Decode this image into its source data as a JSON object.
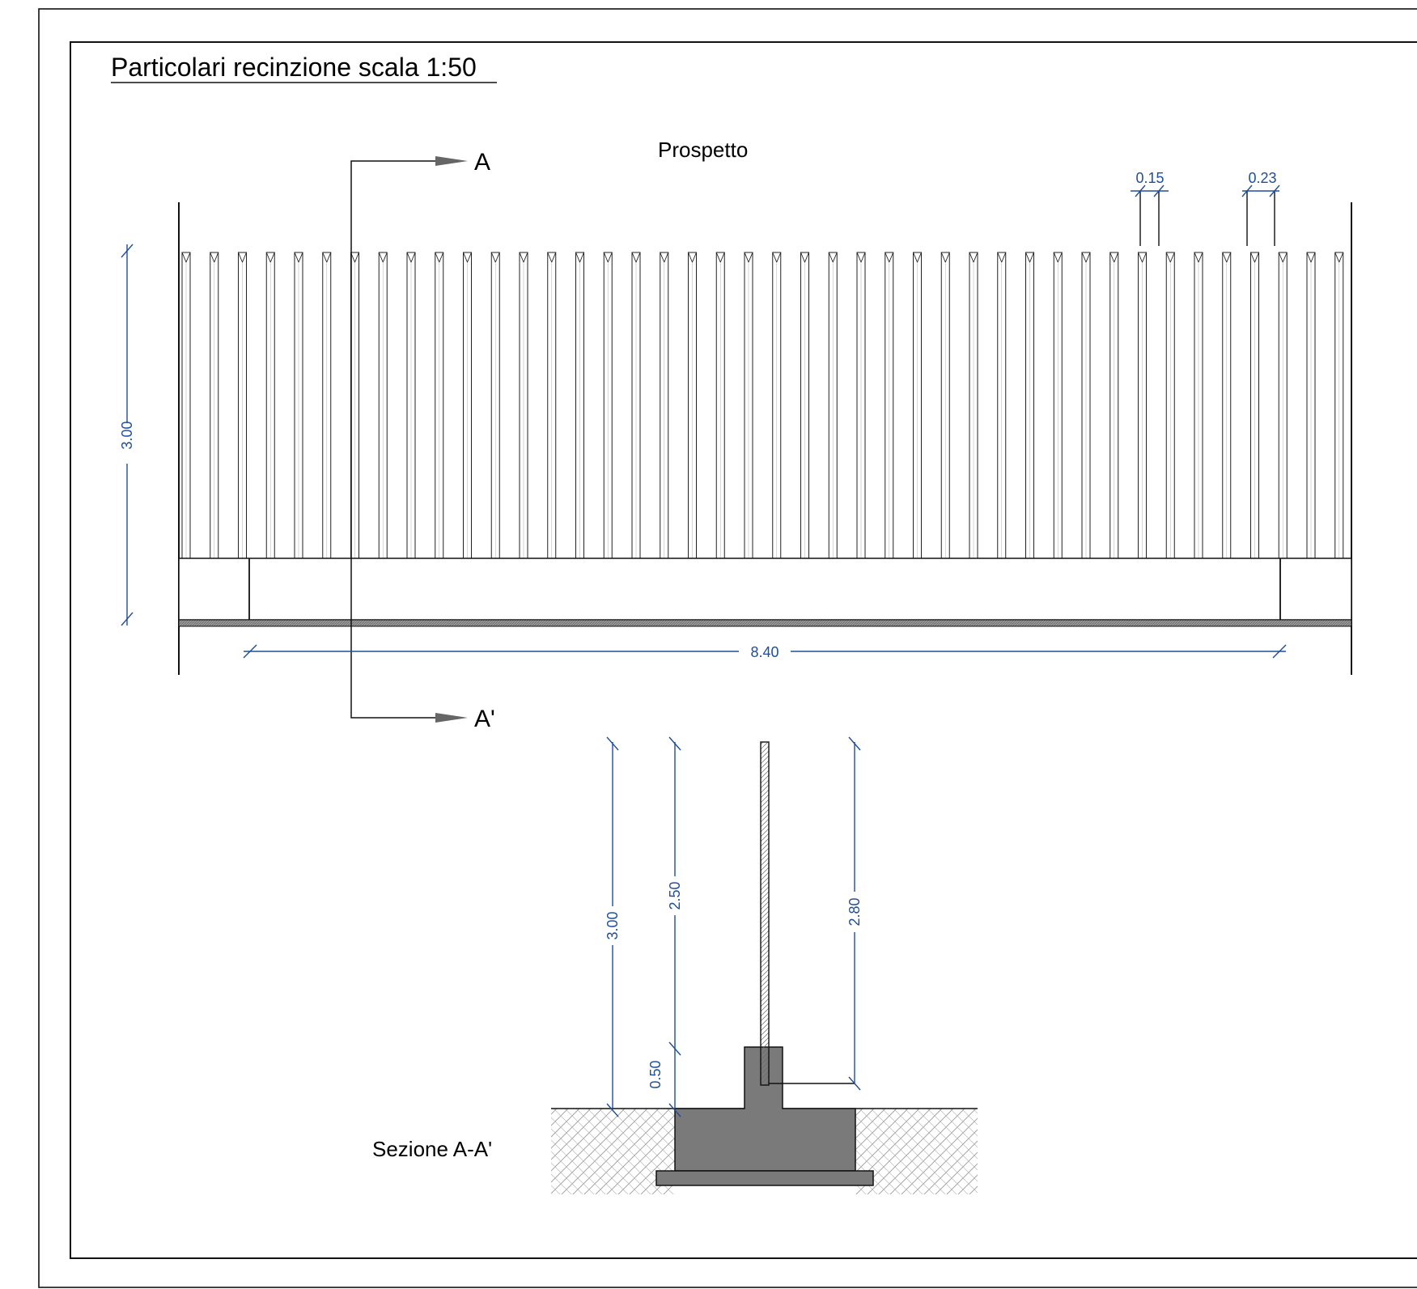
{
  "title": "Particolari recinzione scala 1:50",
  "elevation_label": "Prospetto",
  "section_label": "Sezione A-A'",
  "section_marks": {
    "top": "A",
    "bottom": "A'"
  },
  "dimensions": {
    "slat_width": "0.15",
    "slat_pitch": "0.23",
    "elevation_height": "3.00",
    "elevation_length": "8.40",
    "section_total": "3.00",
    "section_above_wall": "2.50",
    "section_wall": "0.50",
    "section_panel": "2.80"
  },
  "colors": {
    "dimension": "#1f4e9a",
    "concrete": "#7a7a7a",
    "ink": "#111111"
  }
}
